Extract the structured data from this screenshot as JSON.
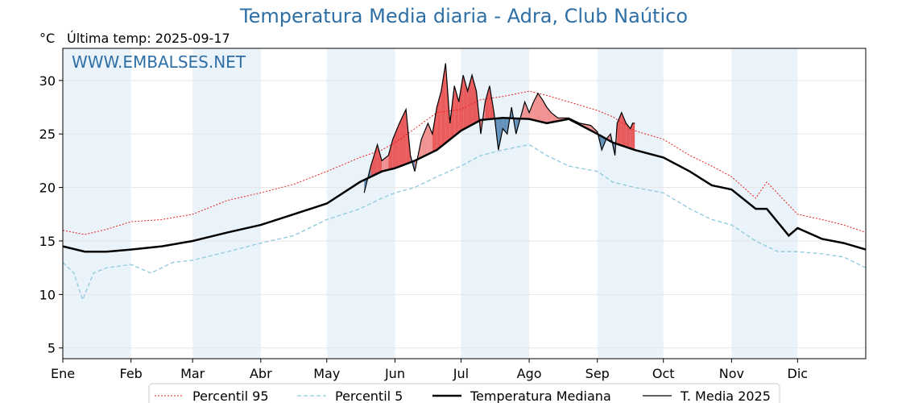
{
  "header": {
    "title": "Temperatura Media diaria - Adra, Club Naútico",
    "unit": "°C",
    "last_temp": "Última temp: 2025-09-17",
    "watermark": "WWW.EMBALSES.NET"
  },
  "colors": {
    "p95": "#e8201c",
    "p5": "#8fc9dc",
    "median": "#000000",
    "current": "#000000",
    "above": "#f08080",
    "above_strong": "#e84040",
    "below": "#4a7fae",
    "band": "#eaf3fa"
  },
  "chart_data": {
    "type": "line",
    "title": "Temperatura Media diaria - Adra, Club Naútico",
    "ylabel": "°C",
    "xlabel": "",
    "ylim": [
      4,
      33
    ],
    "xlim": [
      0,
      365
    ],
    "yticks": [
      5,
      10,
      15,
      20,
      25,
      30
    ],
    "months": [
      {
        "label": "Ene",
        "day": 0
      },
      {
        "label": "Feb",
        "day": 31
      },
      {
        "label": "Mar",
        "day": 59
      },
      {
        "label": "Abr",
        "day": 90
      },
      {
        "label": "May",
        "day": 120
      },
      {
        "label": "Jun",
        "day": 151
      },
      {
        "label": "Jul",
        "day": 181
      },
      {
        "label": "Ago",
        "day": 212
      },
      {
        "label": "Sep",
        "day": 243
      },
      {
        "label": "Oct",
        "day": 273
      },
      {
        "label": "Nov",
        "day": 304
      },
      {
        "label": "Dic",
        "day": 334
      }
    ],
    "grid": true,
    "legend_position": "bottom",
    "series": [
      {
        "name": "Percentil 95",
        "style": "dotted-red",
        "x": [
          0,
          10,
          20,
          31,
          45,
          59,
          75,
          90,
          105,
          120,
          135,
          145,
          151,
          160,
          170,
          181,
          190,
          200,
          212,
          220,
          230,
          243,
          250,
          260,
          273,
          285,
          295,
          304,
          315,
          320,
          334,
          345,
          355,
          365
        ],
        "y": [
          16.0,
          15.6,
          16.1,
          16.8,
          17.0,
          17.5,
          18.8,
          19.5,
          20.3,
          21.5,
          22.8,
          23.5,
          24.2,
          25.5,
          27.0,
          27.3,
          28.2,
          28.5,
          29.0,
          28.6,
          28.0,
          27.2,
          26.6,
          25.3,
          24.5,
          23.0,
          22.0,
          21.0,
          19.0,
          20.5,
          17.5,
          17.0,
          16.5,
          15.8
        ]
      },
      {
        "name": "Percentil 5",
        "style": "dashed-blue",
        "x": [
          0,
          5,
          9,
          14,
          20,
          31,
          40,
          50,
          59,
          75,
          90,
          105,
          120,
          135,
          145,
          151,
          160,
          170,
          181,
          190,
          200,
          212,
          220,
          230,
          243,
          250,
          260,
          273,
          285,
          295,
          304,
          315,
          325,
          334,
          345,
          355,
          365
        ],
        "y": [
          13.0,
          12.0,
          9.5,
          12.0,
          12.5,
          12.8,
          12.0,
          13.0,
          13.2,
          14.0,
          14.8,
          15.5,
          17.0,
          18.0,
          19.0,
          19.5,
          20.0,
          21.0,
          22.0,
          23.0,
          23.5,
          24.0,
          23.0,
          22.0,
          21.5,
          20.5,
          20.0,
          19.5,
          18.0,
          17.0,
          16.5,
          15.0,
          14.0,
          14.0,
          13.8,
          13.5,
          12.5
        ]
      },
      {
        "name": "Temperatura Mediana",
        "style": "thick-black",
        "x": [
          0,
          10,
          20,
          31,
          45,
          59,
          75,
          90,
          105,
          120,
          135,
          145,
          151,
          160,
          170,
          181,
          190,
          200,
          212,
          220,
          230,
          243,
          250,
          260,
          273,
          285,
          295,
          304,
          315,
          320,
          330,
          334,
          345,
          355,
          365
        ],
        "y": [
          14.5,
          14.0,
          14.0,
          14.2,
          14.5,
          15.0,
          15.8,
          16.5,
          17.5,
          18.5,
          20.5,
          21.5,
          21.8,
          22.5,
          23.5,
          25.3,
          26.3,
          26.5,
          26.4,
          26.0,
          26.4,
          25.0,
          24.2,
          23.5,
          22.8,
          21.5,
          20.2,
          19.8,
          18.0,
          18.0,
          15.5,
          16.2,
          15.2,
          14.8,
          14.2
        ]
      },
      {
        "name": "T. Media 2025",
        "style": "thin-black",
        "x": [
          137,
          140,
          143,
          145,
          148,
          150,
          153,
          156,
          158,
          160,
          163,
          166,
          168,
          170,
          172,
          174,
          176,
          178,
          180,
          182,
          184,
          186,
          188,
          190,
          192,
          194,
          196,
          198,
          200,
          202,
          204,
          206,
          208,
          210,
          212,
          214,
          216,
          218,
          220,
          222,
          225,
          230,
          235,
          240,
          243,
          245,
          247,
          249,
          251,
          252,
          254,
          256,
          258,
          259,
          260
        ],
        "y": [
          19.5,
          22.0,
          24.0,
          22.5,
          23.0,
          24.5,
          26.0,
          27.3,
          23.0,
          21.5,
          24.5,
          26.0,
          25.0,
          27.5,
          29.0,
          31.6,
          26.0,
          29.5,
          28.0,
          30.5,
          29.0,
          30.5,
          29.0,
          25.0,
          28.0,
          29.5,
          27.0,
          23.5,
          25.5,
          25.0,
          27.5,
          25.0,
          26.5,
          28.0,
          27.0,
          28.0,
          28.8,
          28.2,
          27.5,
          27.0,
          26.5,
          26.5,
          26.0,
          25.8,
          25.2,
          23.5,
          24.5,
          25.0,
          23.0,
          26.0,
          27.0,
          26.0,
          25.5,
          26.0,
          26.0
        ]
      }
    ]
  },
  "legend": {
    "p95": "Percentil 95",
    "p5": "Percentil 5",
    "median": "Temperatura Mediana",
    "current": "T. Media 2025"
  }
}
